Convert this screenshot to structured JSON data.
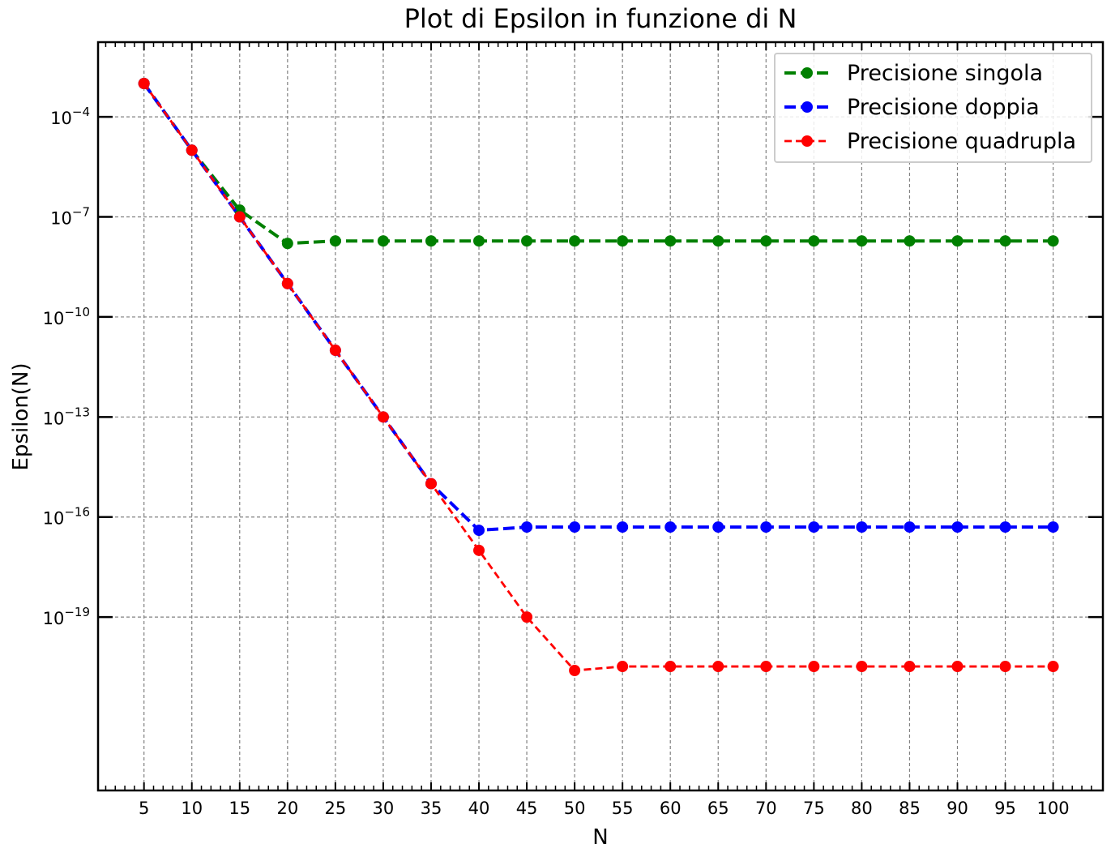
{
  "chart_data": {
    "type": "line",
    "title": "Plot di Epsilon in funzione di N",
    "xlabel": "N",
    "ylabel": "Epsilon(N)",
    "x": [
      5,
      10,
      15,
      20,
      25,
      30,
      35,
      40,
      45,
      50,
      55,
      60,
      65,
      70,
      75,
      80,
      85,
      90,
      95,
      100
    ],
    "x_ticks": [
      5,
      10,
      15,
      20,
      25,
      30,
      35,
      40,
      45,
      50,
      55,
      60,
      65,
      70,
      75,
      80,
      85,
      90,
      95,
      100
    ],
    "x_tick_labels": [
      "5",
      "10",
      "15",
      "20",
      "25",
      "30",
      "35",
      "40",
      "45",
      "50",
      "55",
      "60",
      "65",
      "70",
      "75",
      "80",
      "85",
      "90",
      "95",
      "100"
    ],
    "xlim": [
      0.2,
      105.2
    ],
    "y_scale": "log",
    "ylim_log10": [
      -24.2,
      -1.76
    ],
    "y_ticks_exponent": [
      -4,
      -7,
      -10,
      -13,
      -16,
      -19
    ],
    "y_tick_labels": [
      {
        "base": "10",
        "exp": "−4"
      },
      {
        "base": "10",
        "exp": "−7"
      },
      {
        "base": "10",
        "exp": "−10"
      },
      {
        "base": "10",
        "exp": "−13"
      },
      {
        "base": "10",
        "exp": "−16"
      },
      {
        "base": "10",
        "exp": "−19"
      }
    ],
    "grid": true,
    "legend_position": "top-right",
    "series": [
      {
        "name": "Precisione singola",
        "color": "#008000",
        "line_style": "dashed",
        "values": [
          0.001,
          1e-05,
          1.6e-07,
          1.6e-08,
          1.9e-08,
          1.9e-08,
          1.9e-08,
          1.9e-08,
          1.9e-08,
          1.9e-08,
          1.9e-08,
          1.9e-08,
          1.9e-08,
          1.9e-08,
          1.9e-08,
          1.9e-08,
          1.9e-08,
          1.9e-08,
          1.9e-08,
          1.9e-08
        ]
      },
      {
        "name": "Precisione doppia",
        "color": "#0000ff",
        "line_style": "dashed",
        "values": [
          0.001,
          1e-05,
          1e-07,
          1e-09,
          1e-11,
          1e-13,
          1e-15,
          4e-17,
          5e-17,
          5e-17,
          5e-17,
          5e-17,
          5e-17,
          5e-17,
          5e-17,
          5e-17,
          5e-17,
          5e-17,
          5e-17,
          5e-17
        ]
      },
      {
        "name": "Precisione quadrupla",
        "color": "#ff0000",
        "line_style": "dashed",
        "values": [
          0.001,
          1e-05,
          1e-07,
          1e-09,
          1e-11,
          1e-13,
          1e-15,
          1e-17,
          1e-19,
          2.5e-21,
          3.3e-21,
          3.3e-21,
          3.3e-21,
          3.3e-21,
          3.3e-21,
          3.3e-21,
          3.3e-21,
          3.3e-21,
          3.3e-21,
          3.3e-21
        ]
      }
    ]
  }
}
